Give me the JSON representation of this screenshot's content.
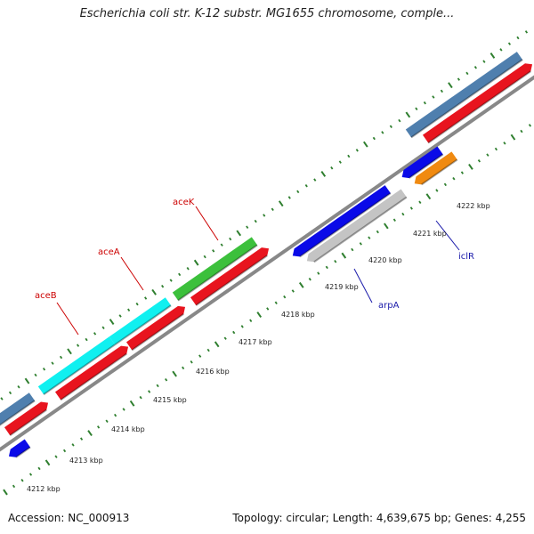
{
  "title": "Escherichia coli str. K-12 substr. MG1655 chromosome, comple...",
  "footer": {
    "accession": "Accession: NC_000913",
    "topology": "Topology: circular; Length: 4,639,675 bp; Genes: 4,255"
  },
  "scale_labels": [
    "4212 kbp",
    "4213 kbp",
    "4214 kbp",
    "4215 kbp",
    "4216 kbp",
    "4217 kbp",
    "4218 kbp",
    "4219 kbp",
    "4220 kbp",
    "4221 kbp",
    "4222 kbp"
  ],
  "gene_labels": [
    {
      "text": "aceB",
      "color": "#cc0000"
    },
    {
      "text": "aceA",
      "color": "#cc0000"
    },
    {
      "text": "aceK",
      "color": "#cc0000"
    },
    {
      "text": "arpA",
      "color": "#1a1aaa"
    },
    {
      "text": "iclR",
      "color": "#1a1aaa"
    }
  ],
  "colors": {
    "tick_green": "#2f7f2f",
    "backbone": "#888888",
    "steelblue": "#4f7fae",
    "red": "#e8141e",
    "cyan": "#10f0f0",
    "green": "#3cc03c",
    "blue": "#0a0ae8",
    "gray": "#c4c4c4",
    "orange": "#f08a10"
  }
}
